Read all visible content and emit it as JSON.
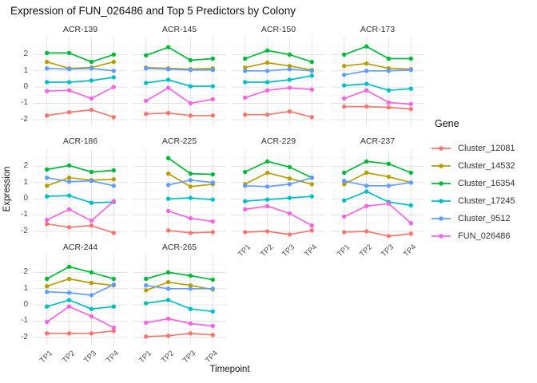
{
  "chart_data": {
    "type": "line",
    "title": "Expression of FUN_026486 and Top 5 Predictors by Colony",
    "xlabel": "Timepoint",
    "ylabel": "Expression",
    "legend_title": "Gene",
    "x_categories": [
      "TP1",
      "TP2",
      "TP3",
      "TP4"
    ],
    "y_ticks": [
      2,
      1,
      0,
      -1,
      -2
    ],
    "ylim": [
      -2.4,
      3.1
    ],
    "grid": true,
    "legend_position": "right",
    "genes": [
      {
        "name": "Cluster_12081",
        "color": "#F8766D"
      },
      {
        "name": "Cluster_14532",
        "color": "#B79F00"
      },
      {
        "name": "Cluster_16354",
        "color": "#00BA38"
      },
      {
        "name": "Cluster_17245",
        "color": "#00BFC4"
      },
      {
        "name": "Cluster_9512",
        "color": "#619CFF"
      },
      {
        "name": "FUN_026486",
        "color": "#F564E3"
      }
    ],
    "facets": [
      {
        "colony": "ACR-139",
        "values": {
          "Cluster_12081": [
            -1.75,
            -1.55,
            -1.4,
            -1.85
          ],
          "Cluster_14532": [
            1.55,
            1.15,
            1.2,
            1.55
          ],
          "Cluster_16354": [
            2.1,
            2.1,
            1.55,
            2.0
          ],
          "Cluster_17245": [
            0.3,
            0.3,
            0.4,
            0.6
          ],
          "Cluster_9512": [
            1.15,
            1.1,
            1.15,
            1.0
          ],
          "FUN_026486": [
            -0.25,
            -0.2,
            -0.7,
            0.0
          ]
        }
      },
      {
        "colony": "ACR-145",
        "values": {
          "Cluster_12081": [
            -1.65,
            -1.6,
            -1.75,
            -1.75
          ],
          "Cluster_14532": [
            1.2,
            1.15,
            1.1,
            1.15
          ],
          "Cluster_16354": [
            1.95,
            2.45,
            1.65,
            1.75
          ],
          "Cluster_17245": [
            0.25,
            0.45,
            0.05,
            0.05
          ],
          "Cluster_9512": [
            1.15,
            1.1,
            1.05,
            1.05
          ],
          "FUN_026486": [
            -0.85,
            -0.05,
            -1.0,
            -0.75
          ]
        }
      },
      {
        "colony": "ACR-150",
        "values": {
          "Cluster_12081": [
            -1.7,
            -1.7,
            -1.5,
            -1.85
          ],
          "Cluster_14532": [
            1.2,
            1.5,
            1.3,
            1.05
          ],
          "Cluster_16354": [
            1.75,
            2.25,
            2.0,
            1.55
          ],
          "Cluster_17245": [
            0.3,
            0.3,
            0.45,
            0.7
          ],
          "Cluster_9512": [
            1.0,
            1.0,
            1.1,
            1.0
          ],
          "FUN_026486": [
            -0.65,
            -0.2,
            -0.05,
            -0.15
          ]
        }
      },
      {
        "colony": "ACR-173",
        "values": {
          "Cluster_12081": [
            -1.2,
            -1.2,
            -1.25,
            -1.35
          ],
          "Cluster_14532": [
            1.3,
            1.45,
            1.15,
            1.1
          ],
          "Cluster_16354": [
            2.0,
            2.5,
            1.75,
            1.75
          ],
          "Cluster_17245": [
            0.1,
            0.2,
            -0.2,
            -0.1
          ],
          "Cluster_9512": [
            0.75,
            1.0,
            1.0,
            1.05
          ],
          "FUN_026486": [
            -0.7,
            -0.2,
            -0.95,
            -1.05
          ]
        }
      },
      {
        "colony": "ACR-186",
        "values": {
          "Cluster_12081": [
            -1.55,
            -1.75,
            -1.65,
            -2.1
          ],
          "Cluster_14532": [
            0.8,
            1.3,
            1.15,
            1.2
          ],
          "Cluster_16354": [
            1.8,
            2.05,
            1.65,
            1.75
          ],
          "Cluster_17245": [
            0.15,
            0.2,
            -0.25,
            -0.2
          ],
          "Cluster_9512": [
            1.3,
            1.05,
            1.1,
            0.8
          ],
          "FUN_026486": [
            -1.3,
            -0.65,
            -1.35,
            -0.15
          ]
        }
      },
      {
        "colony": "ACR-225",
        "values": {
          "Cluster_12081": [
            null,
            -1.95,
            -2.1,
            -2.05
          ],
          "Cluster_14532": [
            null,
            1.55,
            0.75,
            0.9
          ],
          "Cluster_16354": [
            null,
            2.5,
            1.55,
            1.5
          ],
          "Cluster_17245": [
            null,
            0.0,
            0.05,
            -0.05
          ],
          "Cluster_9512": [
            null,
            0.85,
            1.15,
            1.0
          ],
          "FUN_026486": [
            null,
            -0.75,
            -1.2,
            -1.4
          ]
        }
      },
      {
        "colony": "ACR-229",
        "values": {
          "Cluster_12081": [
            -2.05,
            -2.0,
            -2.2,
            -1.95
          ],
          "Cluster_14532": [
            0.9,
            1.6,
            1.25,
            0.9
          ],
          "Cluster_16354": [
            1.65,
            2.3,
            1.95,
            1.3
          ],
          "Cluster_17245": [
            -0.15,
            -0.05,
            0.05,
            0.15
          ],
          "Cluster_9512": [
            0.8,
            0.75,
            0.9,
            1.3
          ],
          "FUN_026486": [
            -0.65,
            -0.45,
            -0.9,
            -1.65
          ]
        }
      },
      {
        "colony": "ACR-237",
        "values": {
          "Cluster_12081": [
            -2.05,
            -2.0,
            -2.3,
            -2.15
          ],
          "Cluster_14532": [
            0.9,
            1.6,
            1.35,
            1.0
          ],
          "Cluster_16354": [
            1.6,
            2.3,
            2.15,
            1.6
          ],
          "Cluster_17245": [
            -0.1,
            0.45,
            -0.2,
            -0.4
          ],
          "Cluster_9512": [
            1.1,
            0.8,
            0.8,
            1.0
          ],
          "FUN_026486": [
            -1.1,
            -0.45,
            -0.3,
            -1.5
          ]
        }
      },
      {
        "colony": "ACR-244",
        "values": {
          "Cluster_12081": [
            -1.75,
            -1.75,
            -1.75,
            -1.6
          ],
          "Cluster_14532": [
            1.15,
            1.6,
            1.35,
            1.2
          ],
          "Cluster_16354": [
            1.6,
            2.35,
            2.0,
            1.6
          ],
          "Cluster_17245": [
            -0.1,
            0.3,
            -0.25,
            -0.1
          ],
          "Cluster_9512": [
            0.8,
            0.75,
            0.6,
            1.25
          ],
          "FUN_026486": [
            -1.05,
            -0.1,
            -0.7,
            -1.4
          ]
        }
      },
      {
        "colony": "ACR-265",
        "values": {
          "Cluster_12081": [
            -1.95,
            -1.9,
            -1.75,
            -1.85
          ],
          "Cluster_14532": [
            0.9,
            1.4,
            1.2,
            0.95
          ],
          "Cluster_16354": [
            1.6,
            2.0,
            1.8,
            1.55
          ],
          "Cluster_17245": [
            0.1,
            0.3,
            -0.25,
            -0.4
          ],
          "Cluster_9512": [
            1.2,
            1.0,
            1.0,
            1.0
          ],
          "FUN_026486": [
            -1.1,
            -0.85,
            -1.15,
            -1.3
          ]
        }
      }
    ]
  }
}
